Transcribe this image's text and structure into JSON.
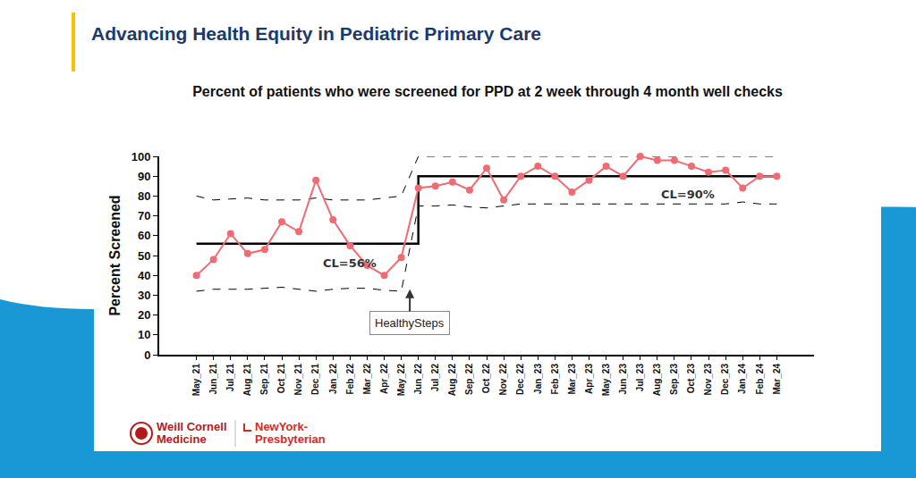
{
  "header": "Advancing Health Equity in Pediatric Primary Care",
  "logos": [
    [
      "Weill Cornell",
      "Medicine"
    ],
    [
      "NewYork-",
      "Presbyterian"
    ]
  ],
  "chart_data": {
    "type": "line",
    "title": "Percent of patients who were screened for PPD at 2 week through 4 month well checks",
    "y_label": "Percent Screened",
    "categories": [
      "May_21",
      "Jun_21",
      "Jul_21",
      "Aug_21",
      "Sep_21",
      "Oct_21",
      "Nov_21",
      "Dec_21",
      "Jan_22",
      "Feb_22",
      "Mar_22",
      "Apr_22",
      "May_22",
      "Jun_22",
      "Jul_22",
      "Aug_22",
      "Sep_22",
      "Oct_22",
      "Nov_22",
      "Dec_22",
      "Jan_23",
      "Feb_23",
      "Mar_23",
      "Apr_23",
      "May_23",
      "Jun_23",
      "Jul_23",
      "Aug_23",
      "Sep_23",
      "Oct_23",
      "Nov_23",
      "Dec_23",
      "Jan_24",
      "Feb_24",
      "Mar_24"
    ],
    "series": [
      {
        "color": "#f06b74",
        "marker": "circle",
        "line_style": "solid",
        "values": [
          40,
          48,
          61,
          51,
          53,
          67,
          62,
          88,
          68,
          55,
          45,
          40,
          49,
          84,
          85,
          87,
          83,
          94,
          78,
          90,
          95,
          90,
          82,
          88,
          95,
          90,
          100,
          98,
          98,
          95,
          92,
          93,
          84,
          90,
          90
        ]
      },
      {
        "color": "#000000",
        "line_style": "step",
        "values": [
          56,
          56,
          56,
          56,
          56,
          56,
          56,
          56,
          56,
          56,
          56,
          56,
          56,
          90,
          90,
          90,
          90,
          90,
          90,
          90,
          90,
          90,
          90,
          90,
          90,
          90,
          90,
          90,
          90,
          90,
          90,
          90,
          90,
          90,
          90
        ]
      },
      {
        "color": "#000000",
        "line_style": "dashed",
        "values": [
          80,
          78,
          78.5,
          79,
          78,
          78,
          78,
          79,
          78,
          78,
          78,
          79,
          80,
          100,
          100,
          100,
          100,
          100,
          100,
          100,
          100,
          100,
          100,
          100,
          100,
          100,
          100,
          100,
          100,
          100,
          100,
          100,
          100,
          100,
          100
        ]
      },
      {
        "color": "#000000",
        "line_style": "dashed",
        "values": [
          32,
          33,
          33,
          33,
          33.5,
          34,
          33,
          32,
          33,
          33.5,
          33.5,
          32.5,
          32,
          75,
          75,
          75.5,
          74.5,
          74,
          75,
          76,
          76,
          76,
          76,
          76,
          76,
          76,
          76,
          76,
          76,
          76,
          76,
          76,
          77,
          76,
          76
        ]
      }
    ],
    "ylim": [
      0,
      100
    ],
    "yticks": [
      0,
      10,
      20,
      30,
      40,
      50,
      60,
      70,
      80,
      90,
      100
    ],
    "grid": false,
    "annotations": [
      {
        "text": "CL=56%"
      },
      {
        "text": "CL=90%"
      },
      {
        "text": "HealthySteps"
      }
    ]
  }
}
